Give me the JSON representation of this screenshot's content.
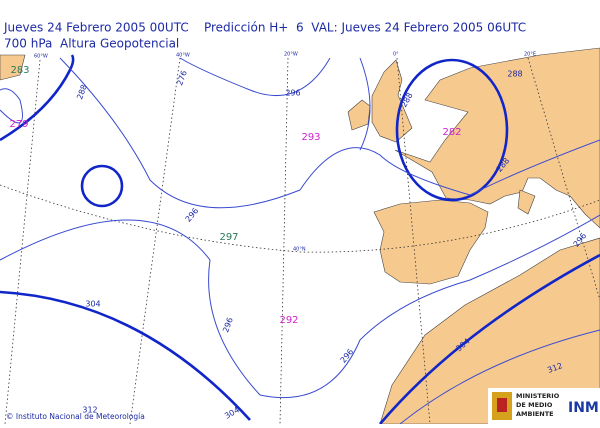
{
  "header": {
    "line1": "Jueves 24 Febrero 2005 00UTC    Predicción H+  6  VAL: Jueves 24 Febrero 2005 06UTC",
    "line2": "700 hPa  Altura Geopotencial"
  },
  "graticule_labels": [
    "60°W",
    "40°W",
    "20°W",
    "0°",
    "20°E",
    "40°N"
  ],
  "centers": [
    283,
    279,
    293,
    282,
    297,
    292
  ],
  "contour_labels": [
    288,
    276,
    296,
    288,
    288,
    288,
    296,
    296,
    296,
    304,
    304,
    304,
    312,
    296,
    312
  ],
  "footer": {
    "credit": "© Instituto Nacional de Meteorología",
    "logo": [
      "MINISTERIO",
      "DE MEDIO",
      "AMBIENTE"
    ],
    "agency": "INM"
  }
}
